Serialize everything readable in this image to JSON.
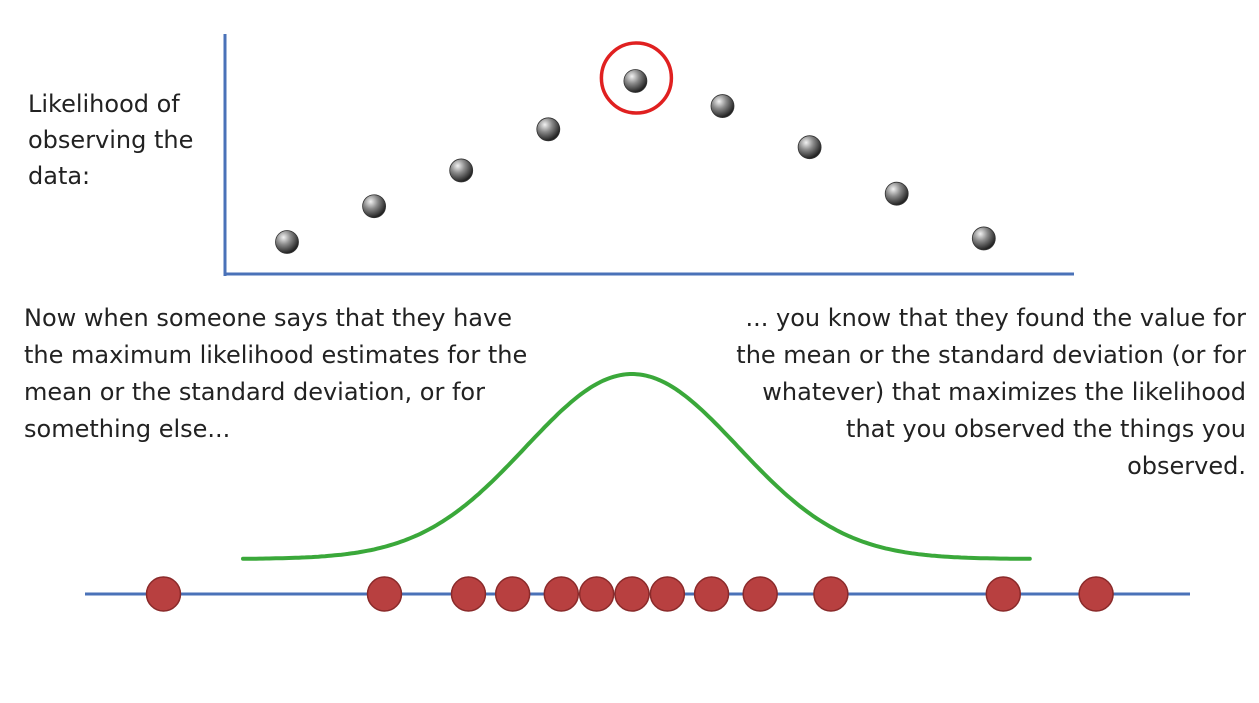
{
  "y_label_lines": [
    "Likelihood of",
    "observing the",
    "data:"
  ],
  "left_text_lines": [
    "Now when someone says that they have",
    "the maximum likelihood estimates for the",
    "mean or the standard deviation, or for",
    "something else..."
  ],
  "right_text_lines": [
    "... you know that they found the value for",
    "the mean or the standard deviation (or for",
    "whatever) that maximizes the likelihood",
    "that you observed the things you",
    "observed."
  ],
  "colors": {
    "axis": "#4a72b8",
    "curve": "#3aa83a",
    "highlight": "#e02020",
    "data_point": "#b84040",
    "likelihood_point": "#777777"
  },
  "chart_data": {
    "type": "scatter",
    "likelihood_points": {
      "x": [
        1,
        2,
        3,
        4,
        5,
        6,
        7,
        8,
        9
      ],
      "y": [
        0.1,
        0.3,
        0.5,
        0.73,
        1.0,
        0.86,
        0.63,
        0.37,
        0.12
      ],
      "highlighted_index": 4
    },
    "observations": [
      -5.3,
      -2.8,
      -1.85,
      -1.35,
      -0.8,
      -0.4,
      0.0,
      0.4,
      0.9,
      1.45,
      2.25,
      4.2,
      5.25
    ],
    "normal_curve": {
      "mean": 0.0,
      "sd": 1.2,
      "x_range": [
        -4.4,
        4.5
      ]
    }
  }
}
